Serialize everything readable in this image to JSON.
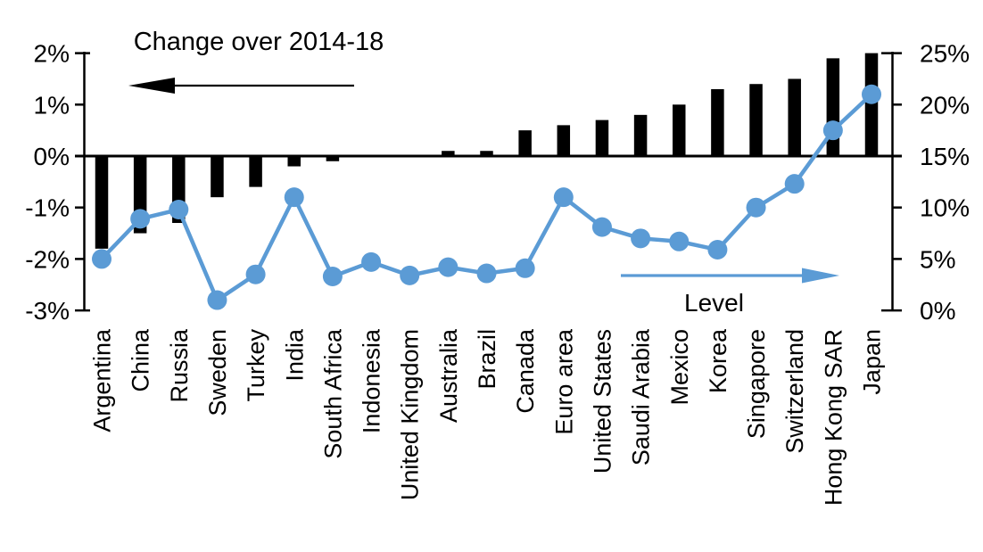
{
  "chart_data": {
    "type": "bar",
    "subtype": "dual-axis bar + line",
    "categories": [
      "Argentina",
      "China",
      "Russia",
      "Sweden",
      "Turkey",
      "India",
      "South Africa",
      "Indonesia",
      "United Kingdom",
      "Australia",
      "Brazil",
      "Canada",
      "Euro area",
      "United States",
      "Saudi Arabia",
      "Mexico",
      "Korea",
      "Singapore",
      "Switzerland",
      "Hong Kong SAR",
      "Japan"
    ],
    "series": [
      {
        "name": "Change over 2014-18",
        "type": "bar",
        "axis": "left",
        "color": "#000000",
        "values": [
          -1.8,
          -1.5,
          -1.3,
          -0.8,
          -0.6,
          -0.2,
          -0.1,
          0,
          0,
          0.1,
          0.1,
          0.5,
          0.6,
          0.7,
          0.8,
          1.0,
          1.3,
          1.4,
          1.5,
          1.9,
          2.0
        ]
      },
      {
        "name": "Level",
        "type": "line",
        "axis": "right",
        "color": "#5B9BD5",
        "values": [
          5.0,
          8.9,
          9.8,
          1.0,
          3.5,
          11.0,
          3.3,
          4.7,
          3.4,
          4.2,
          3.6,
          4.1,
          11.0,
          8.1,
          7.0,
          6.7,
          5.9,
          10.0,
          12.3,
          17.5,
          21.0
        ]
      }
    ],
    "left_axis": {
      "tick_labels": [
        "2%",
        "1%",
        "0%",
        "-1%",
        "-2%",
        "-3%"
      ],
      "tick_values": [
        2,
        1,
        0,
        -1,
        -2,
        -3
      ],
      "min": -3,
      "max": 2
    },
    "right_axis": {
      "tick_labels": [
        "25%",
        "20%",
        "15%",
        "10%",
        "5%",
        "0%"
      ],
      "tick_values": [
        25,
        20,
        15,
        10,
        5,
        0
      ],
      "min": 0,
      "max": 25
    },
    "annotations": {
      "change": {
        "label": "Change over 2014-18",
        "arrow_direction": "left",
        "color": "#000000"
      },
      "level": {
        "label": "Level",
        "arrow_direction": "right",
        "color": "#5B9BD5"
      }
    },
    "grid": false,
    "legend_position": "in-plot text annotations with arrows",
    "background": "#FFFFFF"
  }
}
